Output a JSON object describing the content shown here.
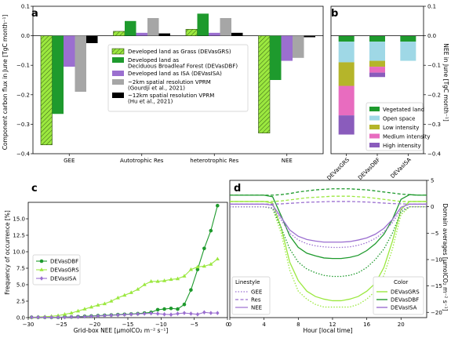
{
  "colors": {
    "grs": "#9be83f",
    "dbf": "#1e9a2d",
    "isa": "#9b6fd0",
    "vprm2": "#a6a6a6",
    "vprm12": "#000000",
    "veg": "#1e9a2d",
    "open": "#9fd8e6",
    "low": "#b5b52a",
    "medium": "#e86cbf",
    "high": "#8a5cbc"
  },
  "chart_data": [
    {
      "panel": "a",
      "type": "bar",
      "ylabel": "Component carbon flux in June [TgC month⁻¹]",
      "ylim": [
        -0.4,
        0.1
      ],
      "yticks": [
        "−0.4",
        "−0.3",
        "−0.2",
        "−0.1",
        "0.0",
        "0.1"
      ],
      "categories": [
        "GEE",
        "Autotrophic Res",
        "heterotrophic Res",
        "NEE"
      ],
      "series": [
        {
          "name": "Developed land as Grass (DEVasGRS)",
          "values": [
            -0.37,
            0.015,
            0.022,
            -0.33
          ]
        },
        {
          "name": "Developed land as Deciduous Broadleaf Forest (DEVasDBF)",
          "values": [
            -0.265,
            0.05,
            0.075,
            -0.15
          ]
        },
        {
          "name": "Developed land as ISA (DEVasISA)",
          "values": [
            -0.105,
            0.01,
            0.01,
            -0.085
          ]
        },
        {
          "name": "~2km spatial resolution VPRM (Gourdji et al., 2021)",
          "values": [
            -0.19,
            0.06,
            0.06,
            -0.075
          ]
        },
        {
          "name": "~12km spatial resolution VPRM (Hu et al., 2021)",
          "values": [
            -0.025,
            0.008,
            0.01,
            -0.005
          ]
        }
      ],
      "legend_labels": [
        [
          "Developed land as Grass (DEVasGRS)"
        ],
        [
          "Developed land as",
          "Deciduous Broadleaf Forest (DEVasDBF)"
        ],
        [
          "Developed land as ISA (DEVasISA)"
        ],
        [
          "~2km spatial resolution VPRM",
          "(Gourdji et al., 2021)"
        ],
        [
          "~12km spatial resolution VPRM",
          "(Hu et al., 2021)"
        ]
      ],
      "legend": "center-right"
    },
    {
      "panel": "b",
      "type": "bar",
      "stacked": true,
      "ylabel": "NEE in June [TgC month⁻¹]",
      "ylim": [
        -0.4,
        0.1
      ],
      "yticks": [
        "−0.4",
        "−0.3",
        "−0.2",
        "−0.1",
        "0.0",
        "0.1"
      ],
      "categories": [
        "DEVasGRS",
        "DEVasDBF",
        "DEVasISA"
      ],
      "series": [
        {
          "name": "Vegetated land",
          "values": [
            -0.02,
            -0.02,
            -0.02
          ]
        },
        {
          "name": "Open space",
          "values": [
            -0.07,
            -0.065,
            -0.065
          ]
        },
        {
          "name": "Low intensity",
          "values": [
            -0.08,
            -0.02,
            0.0
          ]
        },
        {
          "name": "Medium intensity",
          "values": [
            -0.1,
            -0.02,
            0.0
          ]
        },
        {
          "name": "High intensity",
          "values": [
            -0.065,
            -0.015,
            0.0
          ]
        }
      ],
      "legend": "lower-right"
    },
    {
      "panel": "c",
      "type": "line",
      "xlabel": "Grid-box NEE [μmolCO₂ m⁻² s⁻¹]",
      "ylabel": "Frequency of occurrence [%]",
      "xlim": [
        -30,
        0
      ],
      "ylim": [
        0,
        17.5
      ],
      "xticks": [
        "−30",
        "−25",
        "−20",
        "−15",
        "−10",
        "−5",
        "0"
      ],
      "yticks": [
        "0.0",
        "2.5",
        "5.0",
        "7.5",
        "10.0",
        "12.5",
        "15.0"
      ],
      "series": [
        {
          "name": "DEVasDBF",
          "x": [
            -29.5,
            -28.5,
            -27.5,
            -26.5,
            -25.5,
            -24.5,
            -23.5,
            -22.5,
            -21.5,
            -20.5,
            -19.5,
            -18.5,
            -17.5,
            -16.5,
            -15.5,
            -14.5,
            -13.5,
            -12.5,
            -11.5,
            -10.5,
            -9.5,
            -8.5,
            -7.5,
            -6.5,
            -5.5,
            -4.5,
            -3.5,
            -2.5,
            -1.5
          ],
          "y": [
            0.05,
            0.05,
            0.05,
            0.05,
            0.05,
            0.1,
            0.1,
            0.15,
            0.2,
            0.25,
            0.3,
            0.35,
            0.4,
            0.45,
            0.5,
            0.55,
            0.6,
            0.7,
            0.8,
            1.2,
            1.3,
            1.4,
            1.3,
            2.0,
            4.2,
            7.3,
            10.5,
            13.2,
            17.0
          ]
        },
        {
          "name": "DEVasGRS",
          "x": [
            -29.5,
            -28.5,
            -27.5,
            -26.5,
            -25.5,
            -24.5,
            -23.5,
            -22.5,
            -21.5,
            -20.5,
            -19.5,
            -18.5,
            -17.5,
            -16.5,
            -15.5,
            -14.5,
            -13.5,
            -12.5,
            -11.5,
            -10.5,
            -9.5,
            -8.5,
            -7.5,
            -6.5,
            -5.5,
            -4.5,
            -3.5,
            -2.5,
            -1.5
          ],
          "y": [
            0.05,
            0.1,
            0.15,
            0.2,
            0.3,
            0.5,
            0.7,
            1.0,
            1.3,
            1.6,
            1.9,
            2.1,
            2.5,
            3.0,
            3.4,
            3.8,
            4.3,
            5.0,
            5.5,
            5.5,
            5.6,
            5.8,
            5.9,
            6.3,
            7.3,
            7.7,
            7.8,
            8.1,
            8.9
          ]
        },
        {
          "name": "DEVasISA",
          "x": [
            -29.5,
            -28.5,
            -27.5,
            -26.5,
            -25.5,
            -24.5,
            -23.5,
            -22.5,
            -21.5,
            -20.5,
            -19.5,
            -18.5,
            -17.5,
            -16.5,
            -15.5,
            -14.5,
            -13.5,
            -12.5,
            -11.5,
            -10.5,
            -9.5,
            -8.5,
            -7.5,
            -6.5,
            -5.5,
            -4.5,
            -3.5,
            -2.5,
            -1.5
          ],
          "y": [
            0.05,
            0.05,
            0.05,
            0.05,
            0.05,
            0.05,
            0.1,
            0.1,
            0.15,
            0.2,
            0.25,
            0.3,
            0.35,
            0.4,
            0.45,
            0.5,
            0.55,
            0.6,
            0.65,
            0.6,
            0.5,
            0.45,
            0.6,
            0.7,
            0.6,
            0.5,
            0.8,
            0.7,
            0.7
          ]
        }
      ],
      "legend": "center-left"
    },
    {
      "panel": "d",
      "type": "line",
      "xlabel": "Hour [local time]",
      "ylabel": "Domain averages [μmolCO₂ m⁻² s⁻¹]",
      "xlim": [
        0,
        23
      ],
      "ylim": [
        -21,
        5
      ],
      "xticks": [
        "0",
        "4",
        "8",
        "12",
        "16",
        "20"
      ],
      "yticks": [
        "−20",
        "−15",
        "−10",
        "−5",
        "0",
        "5"
      ],
      "linestyle_legend_title": "Linestyle",
      "color_legend_title": "Color",
      "linestyles": [
        {
          "name": "GEE",
          "dash": "dotted"
        },
        {
          "name": "Res",
          "dash": "dashed"
        },
        {
          "name": "NEE",
          "dash": "solid"
        }
      ],
      "hours": [
        0,
        1,
        2,
        3,
        4,
        5,
        6,
        7,
        8,
        9,
        10,
        11,
        12,
        13,
        14,
        15,
        16,
        17,
        18,
        19,
        20,
        21,
        22,
        23
      ],
      "series": [
        {
          "name": "DEVasGRS",
          "GEE": [
            0,
            0,
            0,
            0,
            0,
            -0.3,
            -5,
            -12,
            -16,
            -17.5,
            -18.5,
            -19,
            -19,
            -19,
            -19,
            -18.5,
            -17.5,
            -16,
            -13,
            -8,
            -1.5,
            0,
            0,
            0
          ],
          "Res": [
            1,
            1,
            1,
            1,
            1,
            1,
            1.1,
            1.3,
            1.5,
            1.7,
            1.8,
            1.9,
            2,
            2,
            2,
            1.9,
            1.8,
            1.6,
            1.4,
            1.2,
            1,
            1,
            1,
            1
          ],
          "NEE": [
            1,
            1,
            1,
            1,
            1,
            0.7,
            -4,
            -10.5,
            -14,
            -16,
            -17,
            -17.5,
            -17.8,
            -17.8,
            -17.5,
            -17,
            -16,
            -14.5,
            -11.5,
            -6.5,
            -0.5,
            1,
            1,
            1
          ]
        },
        {
          "name": "DEVasDBF",
          "GEE": [
            0,
            0,
            0,
            0,
            0,
            -0.3,
            -4,
            -8,
            -10.5,
            -11.8,
            -12.5,
            -13,
            -13.2,
            -13.2,
            -13,
            -12.5,
            -11.5,
            -10,
            -8,
            -5,
            -1,
            0,
            0,
            0
          ],
          "Res": [
            2.2,
            2.2,
            2.2,
            2.2,
            2.2,
            2.2,
            2.3,
            2.5,
            2.8,
            3,
            3.2,
            3.3,
            3.4,
            3.4,
            3.4,
            3.3,
            3.2,
            3,
            2.8,
            2.6,
            2.4,
            2.3,
            2.2,
            2.2
          ],
          "NEE": [
            2.2,
            2.2,
            2.2,
            2.2,
            2.2,
            1.9,
            -1.7,
            -5.5,
            -7.7,
            -8.8,
            -9.3,
            -9.7,
            -9.8,
            -9.8,
            -9.6,
            -9.2,
            -8.3,
            -7,
            -5.2,
            -2.4,
            1.4,
            2.3,
            2.2,
            2.2
          ]
        },
        {
          "name": "DEVasISA",
          "GEE": [
            0,
            0,
            0,
            0,
            0,
            -0.2,
            -2.5,
            -5,
            -6.3,
            -7,
            -7.4,
            -7.6,
            -7.7,
            -7.7,
            -7.6,
            -7.3,
            -6.8,
            -6,
            -4.8,
            -3,
            -0.6,
            0,
            0,
            0
          ],
          "Res": [
            0.5,
            0.5,
            0.5,
            0.5,
            0.5,
            0.5,
            0.55,
            0.65,
            0.75,
            0.85,
            0.9,
            0.95,
            1,
            1,
            1,
            0.95,
            0.9,
            0.8,
            0.7,
            0.6,
            0.55,
            0.5,
            0.5,
            0.5
          ],
          "NEE": [
            0.5,
            0.5,
            0.5,
            0.5,
            0.5,
            0.3,
            -2,
            -4.4,
            -5.6,
            -6.2,
            -6.5,
            -6.7,
            -6.7,
            -6.7,
            -6.6,
            -6.3,
            -5.9,
            -5.2,
            -4.1,
            -2.4,
            -0.1,
            0.5,
            0.5,
            0.5
          ]
        }
      ]
    }
  ]
}
